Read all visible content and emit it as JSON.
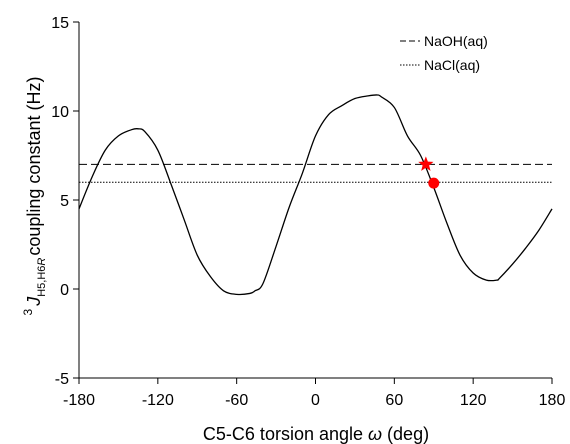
{
  "chart_data": {
    "type": "line",
    "xlabel": {
      "main": "C5-C6 torsion angle ",
      "symbol": "ω",
      "unit": " (deg)"
    },
    "ylabel": {
      "superscript": "3",
      "symbol": "J",
      "subscript_main": "H5,H6",
      "subscript_italic": "R",
      "text": "coupling constant (Hz)"
    },
    "xlim": [
      -180,
      180
    ],
    "ylim": [
      -5,
      15
    ],
    "x_ticks": [
      -180,
      -120,
      -60,
      0,
      60,
      120,
      180
    ],
    "y_ticks": [
      -5,
      0,
      5,
      10,
      15
    ],
    "grid": false,
    "legend_position": "top-right",
    "curve": {
      "x": [
        -180,
        -170,
        -160,
        -150,
        -140,
        -135,
        -130,
        -120,
        -110,
        -100,
        -90,
        -80,
        -70,
        -60,
        -50,
        -46,
        -40,
        -30,
        -20,
        -10,
        0,
        10,
        20,
        30,
        40,
        47,
        50,
        60,
        70,
        80,
        90,
        100,
        110,
        120,
        130,
        138,
        140,
        150,
        160,
        170,
        180
      ],
      "y": [
        4.5,
        6.3,
        7.8,
        8.6,
        8.95,
        9.0,
        8.85,
        7.8,
        5.9,
        3.9,
        1.9,
        0.7,
        -0.1,
        -0.3,
        -0.25,
        -0.1,
        0.3,
        2.4,
        4.6,
        6.5,
        8.6,
        9.8,
        10.3,
        10.7,
        10.85,
        10.9,
        10.8,
        10.2,
        8.6,
        7.5,
        5.7,
        3.7,
        1.9,
        0.9,
        0.5,
        0.5,
        0.6,
        1.4,
        2.3,
        3.3,
        4.5
      ]
    },
    "series": [
      {
        "name": "NaOH(aq)",
        "style": "dashed",
        "value": 7.0,
        "color": "#000000"
      },
      {
        "name": "NaCl(aq)",
        "style": "dotted",
        "value": 6.0,
        "color": "#000000"
      }
    ],
    "markers": [
      {
        "shape": "star",
        "x": 84,
        "y": 7.0,
        "color": "#ff0000"
      },
      {
        "shape": "circle",
        "x": 90,
        "y": 5.95,
        "color": "#ff0000"
      }
    ]
  }
}
